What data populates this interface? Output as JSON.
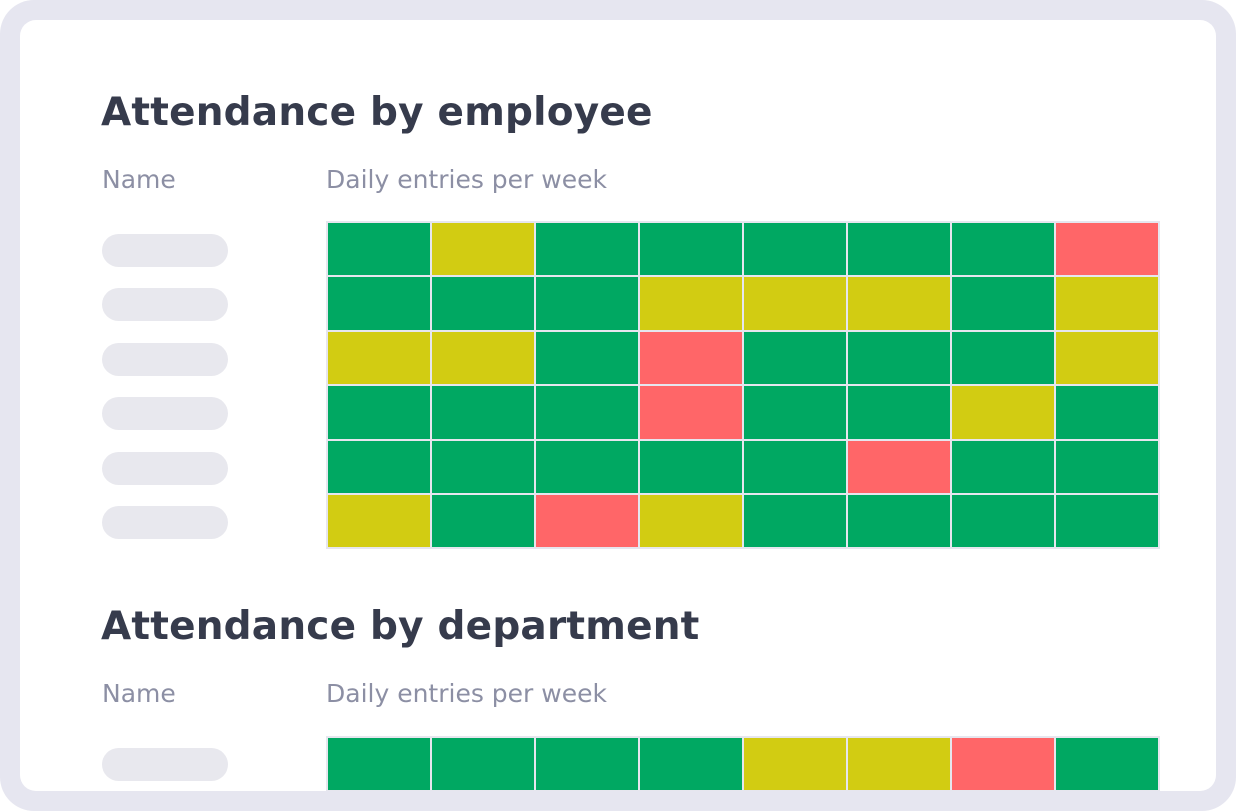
{
  "colors": {
    "good": "#00a862",
    "warn": "#d2cc12",
    "bad": "#ff6668",
    "frame": "#e6e6f0",
    "placeholder": "#e8e8ee"
  },
  "legend_levels": [
    "good",
    "warn",
    "bad"
  ],
  "chart_data": [
    {
      "type": "heatmap",
      "title": "Attendance by employee",
      "row_header": "Name",
      "column_header": "Daily entries per week",
      "rows": 6,
      "columns": 8,
      "values": [
        [
          "good",
          "warn",
          "good",
          "good",
          "good",
          "good",
          "good",
          "bad"
        ],
        [
          "good",
          "good",
          "good",
          "warn",
          "warn",
          "warn",
          "good",
          "warn"
        ],
        [
          "warn",
          "warn",
          "good",
          "bad",
          "good",
          "good",
          "good",
          "warn"
        ],
        [
          "good",
          "good",
          "good",
          "bad",
          "good",
          "good",
          "warn",
          "good"
        ],
        [
          "good",
          "good",
          "good",
          "good",
          "good",
          "bad",
          "good",
          "good"
        ],
        [
          "warn",
          "good",
          "bad",
          "warn",
          "good",
          "good",
          "good",
          "good"
        ]
      ]
    },
    {
      "type": "heatmap",
      "title": "Attendance by department",
      "row_header": "Name",
      "column_header": "Daily entries per week",
      "rows": 1,
      "columns": 8,
      "values": [
        [
          "good",
          "good",
          "good",
          "good",
          "warn",
          "warn",
          "bad",
          "good"
        ]
      ]
    }
  ]
}
